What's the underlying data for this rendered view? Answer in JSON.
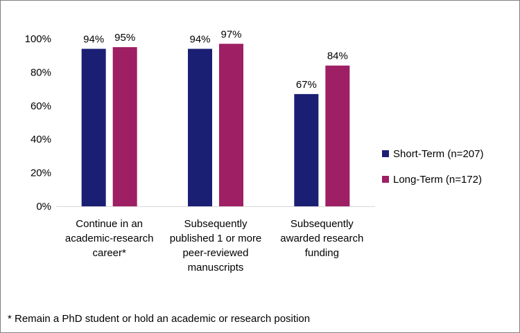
{
  "chart_data": {
    "type": "bar",
    "categories": [
      [
        "Continue in an",
        "academic-research",
        "career*"
      ],
      [
        "Subsequently",
        "published 1 or more",
        "peer-reviewed",
        "manuscripts"
      ],
      [
        "Subsequently",
        "awarded research",
        "funding"
      ]
    ],
    "series": [
      {
        "name": "Short-Term (n=207)",
        "color": "#1b1f73",
        "values": [
          94,
          94,
          67
        ],
        "labels": [
          "94%",
          "94%",
          "67%"
        ]
      },
      {
        "name": "Long-Term (n=172)",
        "color": "#9e1f63",
        "values": [
          95,
          97,
          84
        ],
        "labels": [
          "95%",
          "97%",
          "84%"
        ]
      }
    ],
    "ylim": [
      0,
      100
    ],
    "yticks": [
      0,
      20,
      40,
      60,
      80,
      100
    ],
    "ytick_labels": [
      "0%",
      "20%",
      "40%",
      "60%",
      "80%",
      "100%"
    ],
    "grid": false,
    "legend_position": "right",
    "title": "",
    "xlabel": "",
    "ylabel": ""
  },
  "footnote": "* Remain a PhD student or hold an academic or research position"
}
